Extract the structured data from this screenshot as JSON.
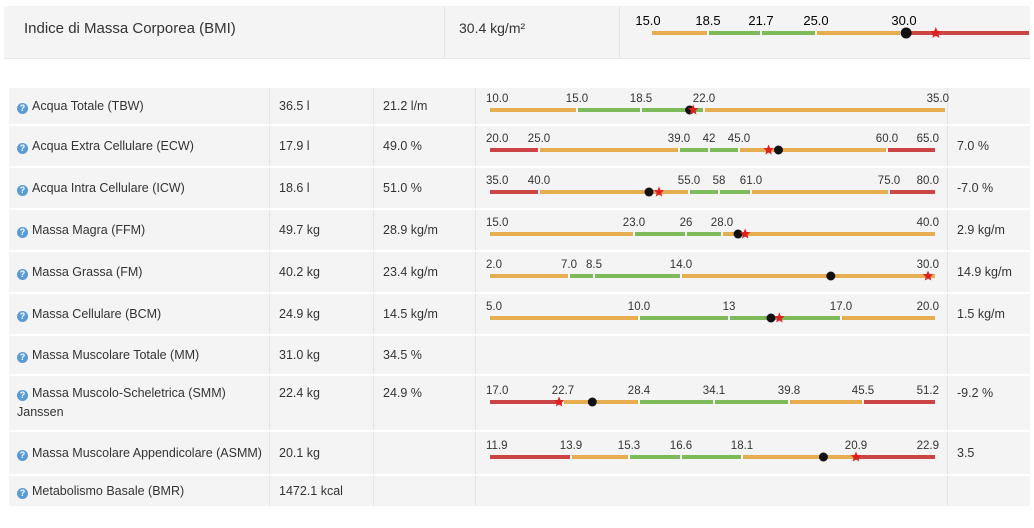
{
  "colors": {
    "red": "#cc4444",
    "orange": "#e5ad4f",
    "green": "#7dba5a",
    "marker": "#111111",
    "star": "#e02020"
  },
  "bmi": {
    "label": "Indice di Massa Corporea (BMI)",
    "value": "30.4 kg/m²",
    "gauge": {
      "ticks": [
        "15.0",
        "18.5",
        "21.7",
        "25.0",
        "30.0"
      ],
      "tick_values": [
        15.0,
        18.5,
        21.7,
        25.0,
        30.0
      ],
      "min": 15.0,
      "max": 40.0,
      "bands": [
        {
          "from": 15.0,
          "to": 18.5,
          "color": "orange"
        },
        {
          "from": 18.5,
          "to": 21.7,
          "color": "green"
        },
        {
          "from": 21.7,
          "to": 25.0,
          "color": "green"
        },
        {
          "from": 25.0,
          "to": 30.0,
          "color": "orange"
        },
        {
          "from": 30.0,
          "to": 40.0,
          "color": "red"
        }
      ],
      "marker": 30.4,
      "star": 32.7
    }
  },
  "rows": [
    {
      "name": "Acqua Totale (TBW)",
      "v1": "36.5 l",
      "v2": "21.2 l/m",
      "v3": "",
      "gauge": {
        "ticks": [
          "10.0",
          "15.0",
          "18.5",
          "22.0",
          "35.0"
        ],
        "tick_values": [
          10.0,
          15.0,
          18.5,
          22.0,
          35.0
        ],
        "bands": [
          {
            "from": 10.0,
            "to": 15.0,
            "color": "orange"
          },
          {
            "from": 15.0,
            "to": 18.5,
            "color": "green"
          },
          {
            "from": 18.5,
            "to": 22.0,
            "color": "green"
          },
          {
            "from": 22.0,
            "to": 35.0,
            "color": "orange"
          }
        ],
        "marker": 21.2,
        "star": 21.4
      }
    },
    {
      "name": "Acqua Extra Cellulare (ECW)",
      "v1": "17.9 l",
      "v2": "49.0 %",
      "v3": "7.0 %",
      "gauge": {
        "ticks": [
          "20.0",
          "25.0",
          "39.0",
          "42",
          "45.0",
          "60.0",
          "65.0"
        ],
        "tick_values": [
          20.0,
          25.0,
          39.0,
          42,
          45.0,
          60.0,
          65.0
        ],
        "bands": [
          {
            "from": 20.0,
            "to": 25.0,
            "color": "red"
          },
          {
            "from": 25.0,
            "to": 39.0,
            "color": "orange"
          },
          {
            "from": 39.0,
            "to": 42.0,
            "color": "green"
          },
          {
            "from": 42.0,
            "to": 45.0,
            "color": "green"
          },
          {
            "from": 45.0,
            "to": 60.0,
            "color": "orange"
          },
          {
            "from": 60.0,
            "to": 65.0,
            "color": "red"
          }
        ],
        "marker": 49.0,
        "star": 48.0
      }
    },
    {
      "name": "Acqua Intra Cellulare (ICW)",
      "v1": "18.6 l",
      "v2": "51.0 %",
      "v3": "-7.0 %",
      "gauge": {
        "ticks": [
          "35.0",
          "40.0",
          "55.0",
          "58",
          "61.0",
          "75.0",
          "80.0"
        ],
        "tick_values": [
          35.0,
          40.0,
          55.0,
          58,
          61.0,
          75.0,
          80.0
        ],
        "bands": [
          {
            "from": 35.0,
            "to": 40.0,
            "color": "red"
          },
          {
            "from": 40.0,
            "to": 55.0,
            "color": "orange"
          },
          {
            "from": 55.0,
            "to": 58.0,
            "color": "green"
          },
          {
            "from": 58.0,
            "to": 61.0,
            "color": "green"
          },
          {
            "from": 61.0,
            "to": 75.0,
            "color": "orange"
          },
          {
            "from": 75.0,
            "to": 80.0,
            "color": "red"
          }
        ],
        "marker": 51.0,
        "star": 52.0
      }
    },
    {
      "name": "Massa Magra (FFM)",
      "v1": "49.7 kg",
      "v2": "28.9 kg/m",
      "v3": "2.9 kg/m",
      "gauge": {
        "ticks": [
          "15.0",
          "23.0",
          "26",
          "28.0",
          "40.0"
        ],
        "tick_values": [
          15.0,
          23.0,
          26,
          28.0,
          40.0
        ],
        "bands": [
          {
            "from": 15.0,
            "to": 23.0,
            "color": "orange"
          },
          {
            "from": 23.0,
            "to": 26.0,
            "color": "green"
          },
          {
            "from": 26.0,
            "to": 28.0,
            "color": "green"
          },
          {
            "from": 28.0,
            "to": 40.0,
            "color": "orange"
          }
        ],
        "marker": 28.9,
        "star": 29.3
      }
    },
    {
      "name": "Massa Grassa (FM)",
      "v1": "40.2 kg",
      "v2": "23.4 kg/m",
      "v3": "14.9 kg/m",
      "gauge": {
        "ticks": [
          "2.0",
          "7.0",
          "8.5",
          "14.0",
          "30.0"
        ],
        "tick_values": [
          2.0,
          7.0,
          8.5,
          14.0,
          30.0
        ],
        "bands": [
          {
            "from": 2.0,
            "to": 7.0,
            "color": "orange"
          },
          {
            "from": 7.0,
            "to": 8.5,
            "color": "green"
          },
          {
            "from": 8.5,
            "to": 14.0,
            "color": "green"
          },
          {
            "from": 14.0,
            "to": 30.0,
            "color": "orange"
          }
        ],
        "marker": 23.4,
        "star": 29.5
      }
    },
    {
      "name": "Massa Cellulare (BCM)",
      "v1": "24.9 kg",
      "v2": "14.5 kg/m",
      "v3": "1.5 kg/m",
      "gauge": {
        "ticks": [
          "5.0",
          "10.0",
          "13",
          "17.0",
          "20.0"
        ],
        "tick_values": [
          5.0,
          10.0,
          13,
          17.0,
          20.0
        ],
        "bands": [
          {
            "from": 5.0,
            "to": 10.0,
            "color": "orange"
          },
          {
            "from": 10.0,
            "to": 13.0,
            "color": "green"
          },
          {
            "from": 13.0,
            "to": 17.0,
            "color": "green"
          },
          {
            "from": 17.0,
            "to": 20.0,
            "color": "orange"
          }
        ],
        "marker": 14.5,
        "star": 14.8
      }
    },
    {
      "name": "Massa Muscolare Totale (MM)",
      "v1": "31.0 kg",
      "v2": "34.5 %",
      "v3": "",
      "gauge": null
    },
    {
      "name": "Massa Muscolo-Scheletrica (SMM)",
      "name2": "Janssen",
      "v1": "22.4 kg",
      "v2": "24.9 %",
      "v3": "-9.2 %",
      "gauge": {
        "ticks": [
          "17.0",
          "22.7",
          "28.4",
          "34.1",
          "39.8",
          "45.5",
          "51.2"
        ],
        "tick_values": [
          17.0,
          22.7,
          28.4,
          34.1,
          39.8,
          45.5,
          51.2
        ],
        "bands": [
          {
            "from": 17.0,
            "to": 22.7,
            "color": "red"
          },
          {
            "from": 22.7,
            "to": 28.4,
            "color": "orange"
          },
          {
            "from": 28.4,
            "to": 34.1,
            "color": "green"
          },
          {
            "from": 34.1,
            "to": 39.8,
            "color": "green"
          },
          {
            "from": 39.8,
            "to": 45.5,
            "color": "orange"
          },
          {
            "from": 45.5,
            "to": 51.2,
            "color": "red"
          }
        ],
        "marker": 24.9,
        "star": 22.4
      }
    },
    {
      "name": "Massa Muscolare Appendicolare (ASMM)",
      "v1": "20.1 kg",
      "v2": "",
      "v3": "3.5",
      "gauge": {
        "ticks": [
          "11.9",
          "13.9",
          "15.3",
          "16.6",
          "18.1",
          "20.9",
          "22.9"
        ],
        "tick_values": [
          11.9,
          13.9,
          15.3,
          16.6,
          18.1,
          20.9,
          22.9
        ],
        "bands": [
          {
            "from": 11.9,
            "to": 13.9,
            "color": "red"
          },
          {
            "from": 13.9,
            "to": 15.3,
            "color": "orange"
          },
          {
            "from": 15.3,
            "to": 16.6,
            "color": "green"
          },
          {
            "from": 16.6,
            "to": 18.1,
            "color": "green"
          },
          {
            "from": 18.1,
            "to": 20.9,
            "color": "orange"
          },
          {
            "from": 20.9,
            "to": 22.9,
            "color": "red"
          }
        ],
        "marker": 20.1,
        "star": 20.9
      }
    },
    {
      "name": "Metabolismo Basale (BMR)",
      "v1": "1472.1 kcal",
      "v2": "",
      "v3": "",
      "gauge": null
    }
  ]
}
